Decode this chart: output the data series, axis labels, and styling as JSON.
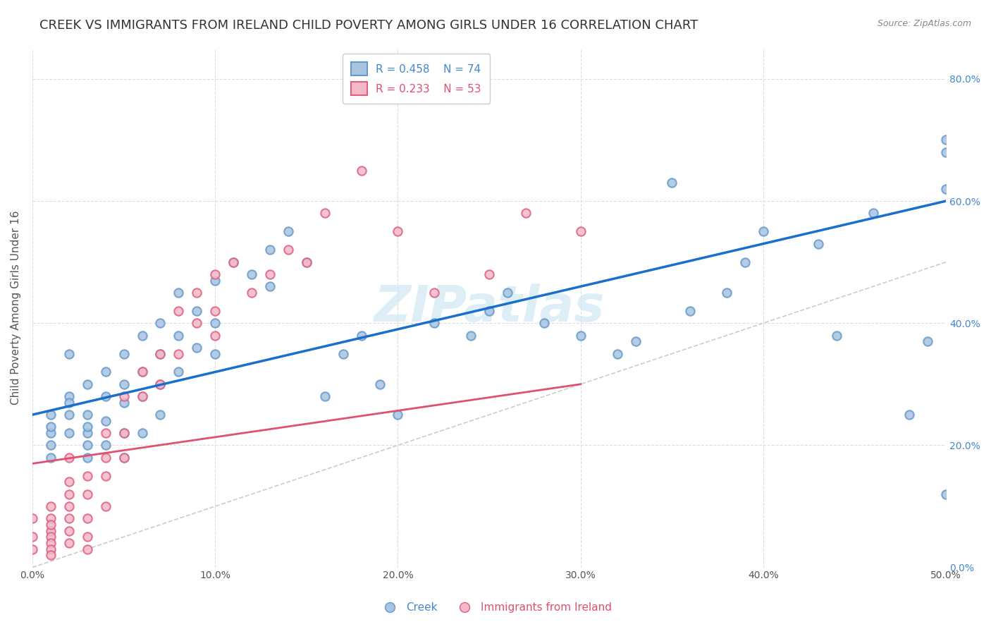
{
  "title": "CREEK VS IMMIGRANTS FROM IRELAND CHILD POVERTY AMONG GIRLS UNDER 16 CORRELATION CHART",
  "source": "Source: ZipAtlas.com",
  "xlabel": "",
  "ylabel": "Child Poverty Among Girls Under 16",
  "xlim": [
    0,
    0.5
  ],
  "ylim": [
    0,
    0.85
  ],
  "xticks": [
    0.0,
    0.1,
    0.2,
    0.3,
    0.4,
    0.5
  ],
  "yticks": [
    0.0,
    0.2,
    0.4,
    0.6,
    0.8
  ],
  "xticklabels": [
    "0.0%",
    "10.0%",
    "20.0%",
    "30.0%",
    "40.0%",
    "50.0%"
  ],
  "yticklabels": [
    "0.0%",
    "20.0%",
    "40.0%",
    "60.0%",
    "80.0%"
  ],
  "creek_color": "#a8c4e0",
  "creek_edge_color": "#6699cc",
  "ireland_color": "#f4b8c8",
  "ireland_edge_color": "#e06080",
  "creek_line_color": "#1a6fcc",
  "ireland_line_color": "#e05070",
  "ref_line_color": "#cccccc",
  "watermark": "ZIPatlas",
  "watermark_color": "#d0e8f5",
  "legend_creek_r": "R = 0.458",
  "legend_creek_n": "N = 74",
  "legend_ireland_r": "R = 0.233",
  "legend_ireland_n": "N = 53",
  "creek_scatter_x": [
    0.01,
    0.01,
    0.01,
    0.01,
    0.01,
    0.02,
    0.02,
    0.02,
    0.02,
    0.02,
    0.03,
    0.03,
    0.03,
    0.03,
    0.03,
    0.03,
    0.04,
    0.04,
    0.04,
    0.04,
    0.05,
    0.05,
    0.05,
    0.05,
    0.05,
    0.06,
    0.06,
    0.06,
    0.06,
    0.07,
    0.07,
    0.07,
    0.07,
    0.08,
    0.08,
    0.08,
    0.09,
    0.09,
    0.1,
    0.1,
    0.1,
    0.11,
    0.12,
    0.13,
    0.13,
    0.14,
    0.15,
    0.16,
    0.17,
    0.18,
    0.19,
    0.2,
    0.22,
    0.24,
    0.25,
    0.26,
    0.28,
    0.3,
    0.32,
    0.33,
    0.35,
    0.36,
    0.38,
    0.39,
    0.4,
    0.43,
    0.44,
    0.46,
    0.48,
    0.49,
    0.5,
    0.5,
    0.5,
    0.5
  ],
  "creek_scatter_y": [
    0.25,
    0.22,
    0.2,
    0.18,
    0.23,
    0.28,
    0.25,
    0.22,
    0.35,
    0.27,
    0.3,
    0.25,
    0.2,
    0.18,
    0.22,
    0.23,
    0.32,
    0.28,
    0.24,
    0.2,
    0.35,
    0.3,
    0.27,
    0.22,
    0.18,
    0.38,
    0.32,
    0.28,
    0.22,
    0.4,
    0.35,
    0.3,
    0.25,
    0.45,
    0.38,
    0.32,
    0.42,
    0.36,
    0.47,
    0.4,
    0.35,
    0.5,
    0.48,
    0.52,
    0.46,
    0.55,
    0.5,
    0.28,
    0.35,
    0.38,
    0.3,
    0.25,
    0.4,
    0.38,
    0.42,
    0.45,
    0.4,
    0.38,
    0.35,
    0.37,
    0.63,
    0.42,
    0.45,
    0.5,
    0.55,
    0.53,
    0.38,
    0.58,
    0.25,
    0.37,
    0.62,
    0.7,
    0.68,
    0.12
  ],
  "ireland_scatter_x": [
    0.0,
    0.0,
    0.0,
    0.01,
    0.01,
    0.01,
    0.01,
    0.01,
    0.01,
    0.01,
    0.01,
    0.02,
    0.02,
    0.02,
    0.02,
    0.02,
    0.02,
    0.02,
    0.03,
    0.03,
    0.03,
    0.03,
    0.03,
    0.04,
    0.04,
    0.04,
    0.04,
    0.05,
    0.05,
    0.05,
    0.06,
    0.06,
    0.07,
    0.07,
    0.08,
    0.08,
    0.09,
    0.09,
    0.1,
    0.1,
    0.1,
    0.11,
    0.12,
    0.13,
    0.14,
    0.15,
    0.16,
    0.18,
    0.2,
    0.22,
    0.25,
    0.27,
    0.3
  ],
  "ireland_scatter_y": [
    0.05,
    0.08,
    0.03,
    0.08,
    0.06,
    0.05,
    0.04,
    0.03,
    0.02,
    0.07,
    0.1,
    0.12,
    0.1,
    0.08,
    0.06,
    0.04,
    0.18,
    0.14,
    0.15,
    0.12,
    0.08,
    0.05,
    0.03,
    0.22,
    0.18,
    0.15,
    0.1,
    0.28,
    0.22,
    0.18,
    0.32,
    0.28,
    0.35,
    0.3,
    0.42,
    0.35,
    0.45,
    0.4,
    0.48,
    0.42,
    0.38,
    0.5,
    0.45,
    0.48,
    0.52,
    0.5,
    0.58,
    0.65,
    0.55,
    0.45,
    0.48,
    0.58,
    0.55
  ],
  "creek_line_x": [
    0.0,
    0.5
  ],
  "creek_line_y": [
    0.25,
    0.6
  ],
  "ireland_line_x": [
    0.0,
    0.3
  ],
  "ireland_line_y": [
    0.17,
    0.3
  ],
  "ref_line_x": [
    0.0,
    0.85
  ],
  "ref_line_y": [
    0.0,
    0.85
  ],
  "background_color": "#ffffff",
  "grid_color": "#dddddd",
  "title_fontsize": 13,
  "axis_label_fontsize": 11,
  "tick_fontsize": 10,
  "marker_size": 80,
  "marker_linewidth": 1.5
}
